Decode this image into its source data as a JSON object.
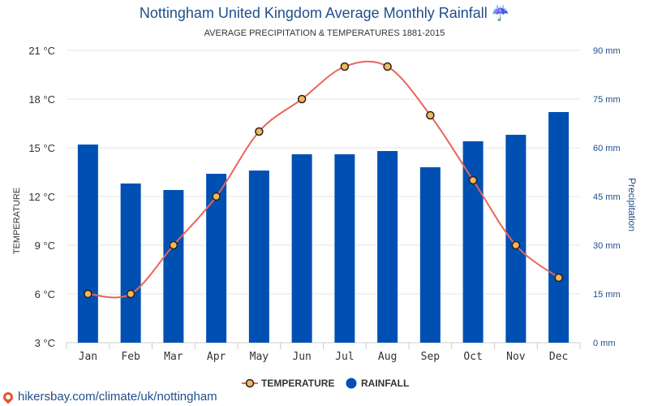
{
  "title": "Nottingham United Kingdom Average Monthly Rainfall",
  "title_icon": "umbrella-rain-icon",
  "title_icon_glyph": "☔",
  "subtitle": "AVERAGE PRECIPITATION & TEMPERATURES 1881-2015",
  "footer": {
    "text": "hikersbay.com/climate/uk/nottingham",
    "icon": "map-pin-icon",
    "icon_color": "#e8542c"
  },
  "colors": {
    "bar": "#0050b3",
    "line": "#e8655a",
    "marker_fill": "#f5b75a",
    "marker_stroke": "#222222",
    "right_axis_text": "#1f4e8c"
  },
  "chart_data": {
    "type": "bar",
    "categories": [
      "Jan",
      "Feb",
      "Mar",
      "Apr",
      "May",
      "Jun",
      "Jul",
      "Aug",
      "Sep",
      "Oct",
      "Nov",
      "Dec"
    ],
    "series": [
      {
        "name": "TEMPERATURE",
        "type": "line",
        "axis": "left",
        "unit": "°C",
        "values": [
          6,
          6,
          9,
          12,
          16,
          18,
          20,
          20,
          17,
          13,
          9,
          7
        ]
      },
      {
        "name": "RAINFALL",
        "type": "bar",
        "axis": "right",
        "unit": "mm",
        "values": [
          61,
          49,
          47,
          52,
          53,
          58,
          58,
          59,
          54,
          62,
          64,
          71
        ]
      }
    ],
    "y_left": {
      "label": "TEMPERATURE",
      "range": [
        3,
        21
      ],
      "ticks": [
        "3 °C",
        "6 °C",
        "9 °C",
        "12 °C",
        "15 °C",
        "18 °C",
        "21 °C"
      ]
    },
    "y_right": {
      "label": "Precipitation",
      "range": [
        0,
        90
      ],
      "ticks": [
        "0 mm",
        "15 mm",
        "30 mm",
        "45 mm",
        "60 mm",
        "75 mm",
        "90 mm"
      ]
    },
    "grid": true,
    "legend_position": "bottom-center"
  }
}
